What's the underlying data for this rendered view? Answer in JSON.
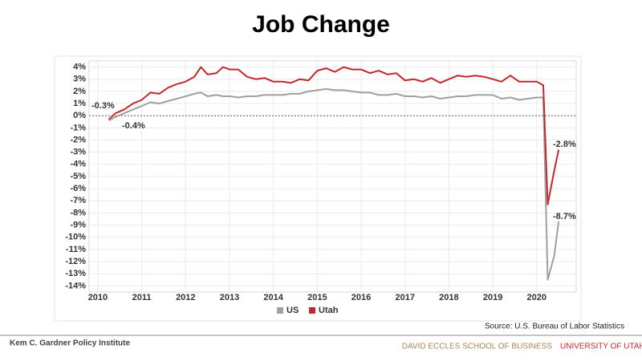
{
  "chart_data": {
    "type": "line",
    "title": "Job Change",
    "x": [
      2010.25,
      2010.4,
      2010.6,
      2010.8,
      2011.0,
      2011.2,
      2011.4,
      2011.6,
      2011.8,
      2012.0,
      2012.2,
      2012.35,
      2012.5,
      2012.7,
      2012.85,
      2013.0,
      2013.2,
      2013.4,
      2013.6,
      2013.8,
      2014.0,
      2014.2,
      2014.4,
      2014.6,
      2014.8,
      2015.0,
      2015.2,
      2015.4,
      2015.6,
      2015.8,
      2016.0,
      2016.2,
      2016.4,
      2016.6,
      2016.8,
      2017.0,
      2017.2,
      2017.4,
      2017.6,
      2017.8,
      2018.0,
      2018.2,
      2018.4,
      2018.6,
      2018.8,
      2019.0,
      2019.2,
      2019.4,
      2019.6,
      2019.8,
      2020.0,
      2020.15,
      2020.25,
      2020.4,
      2020.5
    ],
    "series": [
      {
        "name": "US",
        "color": "#a0a0a0",
        "values": [
          -0.4,
          -0.1,
          0.2,
          0.5,
          0.8,
          1.1,
          1.0,
          1.2,
          1.4,
          1.6,
          1.8,
          1.9,
          1.6,
          1.7,
          1.6,
          1.6,
          1.5,
          1.6,
          1.6,
          1.7,
          1.7,
          1.7,
          1.8,
          1.8,
          2.0,
          2.1,
          2.2,
          2.1,
          2.1,
          2.0,
          1.9,
          1.9,
          1.7,
          1.7,
          1.8,
          1.6,
          1.6,
          1.5,
          1.6,
          1.4,
          1.5,
          1.6,
          1.6,
          1.7,
          1.7,
          1.7,
          1.4,
          1.5,
          1.3,
          1.4,
          1.5,
          1.5,
          -13.5,
          -11.5,
          -8.7
        ]
      },
      {
        "name": "Utah",
        "color": "#c0282d",
        "values": [
          -0.3,
          0.2,
          0.5,
          1.0,
          1.3,
          1.9,
          1.8,
          2.3,
          2.6,
          2.8,
          3.2,
          4.0,
          3.4,
          3.5,
          4.0,
          3.8,
          3.8,
          3.2,
          3.0,
          3.1,
          2.8,
          2.8,
          2.7,
          3.0,
          2.9,
          3.7,
          3.9,
          3.6,
          4.0,
          3.8,
          3.8,
          3.5,
          3.7,
          3.4,
          3.5,
          2.9,
          3.0,
          2.8,
          3.1,
          2.7,
          3.0,
          3.3,
          3.2,
          3.3,
          3.2,
          3.0,
          2.8,
          3.3,
          2.8,
          2.8,
          2.8,
          2.5,
          -7.3,
          -4.5,
          -2.8
        ]
      }
    ],
    "annotations": [
      "-0.3%",
      "-0.4%",
      "-2.8%",
      "-8.7%"
    ],
    "xlim": [
      2009.8,
      2020.9
    ],
    "xticks": [
      2010,
      2011,
      2012,
      2013,
      2014,
      2015,
      2016,
      2017,
      2018,
      2019,
      2020
    ],
    "ylim": [
      -14.5,
      4.5
    ],
    "yticks": [
      {
        "value": 4,
        "label": "4%"
      },
      {
        "value": 3,
        "label": "3%"
      },
      {
        "value": 2,
        "label": "2%"
      },
      {
        "value": 1,
        "label": "1%"
      },
      {
        "value": 0,
        "label": "0%"
      },
      {
        "value": -1,
        "label": "-1%"
      },
      {
        "value": -2,
        "label": "-2%"
      },
      {
        "value": -3,
        "label": "-3%"
      },
      {
        "value": -4,
        "label": "-4%"
      },
      {
        "value": -5,
        "label": "-5%"
      },
      {
        "value": -6,
        "label": "-6%"
      },
      {
        "value": -7,
        "label": "-7%"
      },
      {
        "value": -8,
        "label": "-8%"
      },
      {
        "value": -9,
        "label": "-9%"
      },
      {
        "value": -10,
        "label": "-10%"
      },
      {
        "value": -11,
        "label": "-11%"
      },
      {
        "value": -12,
        "label": "-12%"
      },
      {
        "value": -13,
        "label": "-13%"
      },
      {
        "value": -14,
        "label": "-14%"
      }
    ],
    "grid": true,
    "source": "Source: U.S. Bureau of Labor Statistics"
  },
  "footer": {
    "left": "Kem C. Gardner Policy Institute",
    "school": "DAVID ECCLES SCHOOL OF BUSINESS",
    "university": "UNIVERSITY OF UTAH"
  }
}
